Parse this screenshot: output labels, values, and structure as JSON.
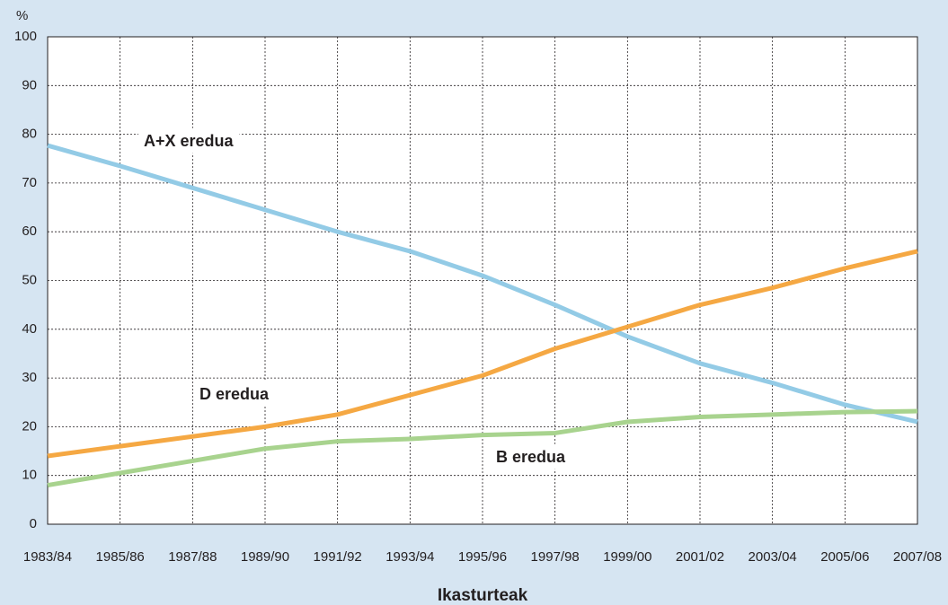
{
  "chart_data": {
    "type": "line",
    "y_label": "%",
    "x_label": "Ikasturteak",
    "categories": [
      "1983/84",
      "1985/86",
      "1987/88",
      "1989/90",
      "1991/92",
      "1993/94",
      "1995/96",
      "1997/98",
      "1999/00",
      "2001/02",
      "2003/04",
      "2005/06",
      "2007/08"
    ],
    "series": [
      {
        "name": "A+X eredua",
        "color": "#93cbe6",
        "values": [
          77.7,
          73.5,
          69,
          64.5,
          60,
          56,
          51,
          45,
          38.5,
          33,
          29,
          24.5,
          21
        ]
      },
      {
        "name": "D eredua",
        "color": "#f5a843",
        "values": [
          14,
          16,
          18,
          20,
          22.5,
          26.5,
          30.5,
          36,
          40.5,
          45,
          48.5,
          52.5,
          56
        ]
      },
      {
        "name": "B eredua",
        "color": "#a8d38e",
        "values": [
          8,
          10.5,
          13,
          15.5,
          17,
          17.5,
          18.3,
          18.7,
          21,
          22,
          22.5,
          23,
          23.2
        ]
      }
    ],
    "ylim": [
      0,
      100
    ],
    "yticks": [
      0,
      10,
      20,
      30,
      40,
      50,
      60,
      70,
      80,
      90,
      100
    ],
    "grid": true
  }
}
